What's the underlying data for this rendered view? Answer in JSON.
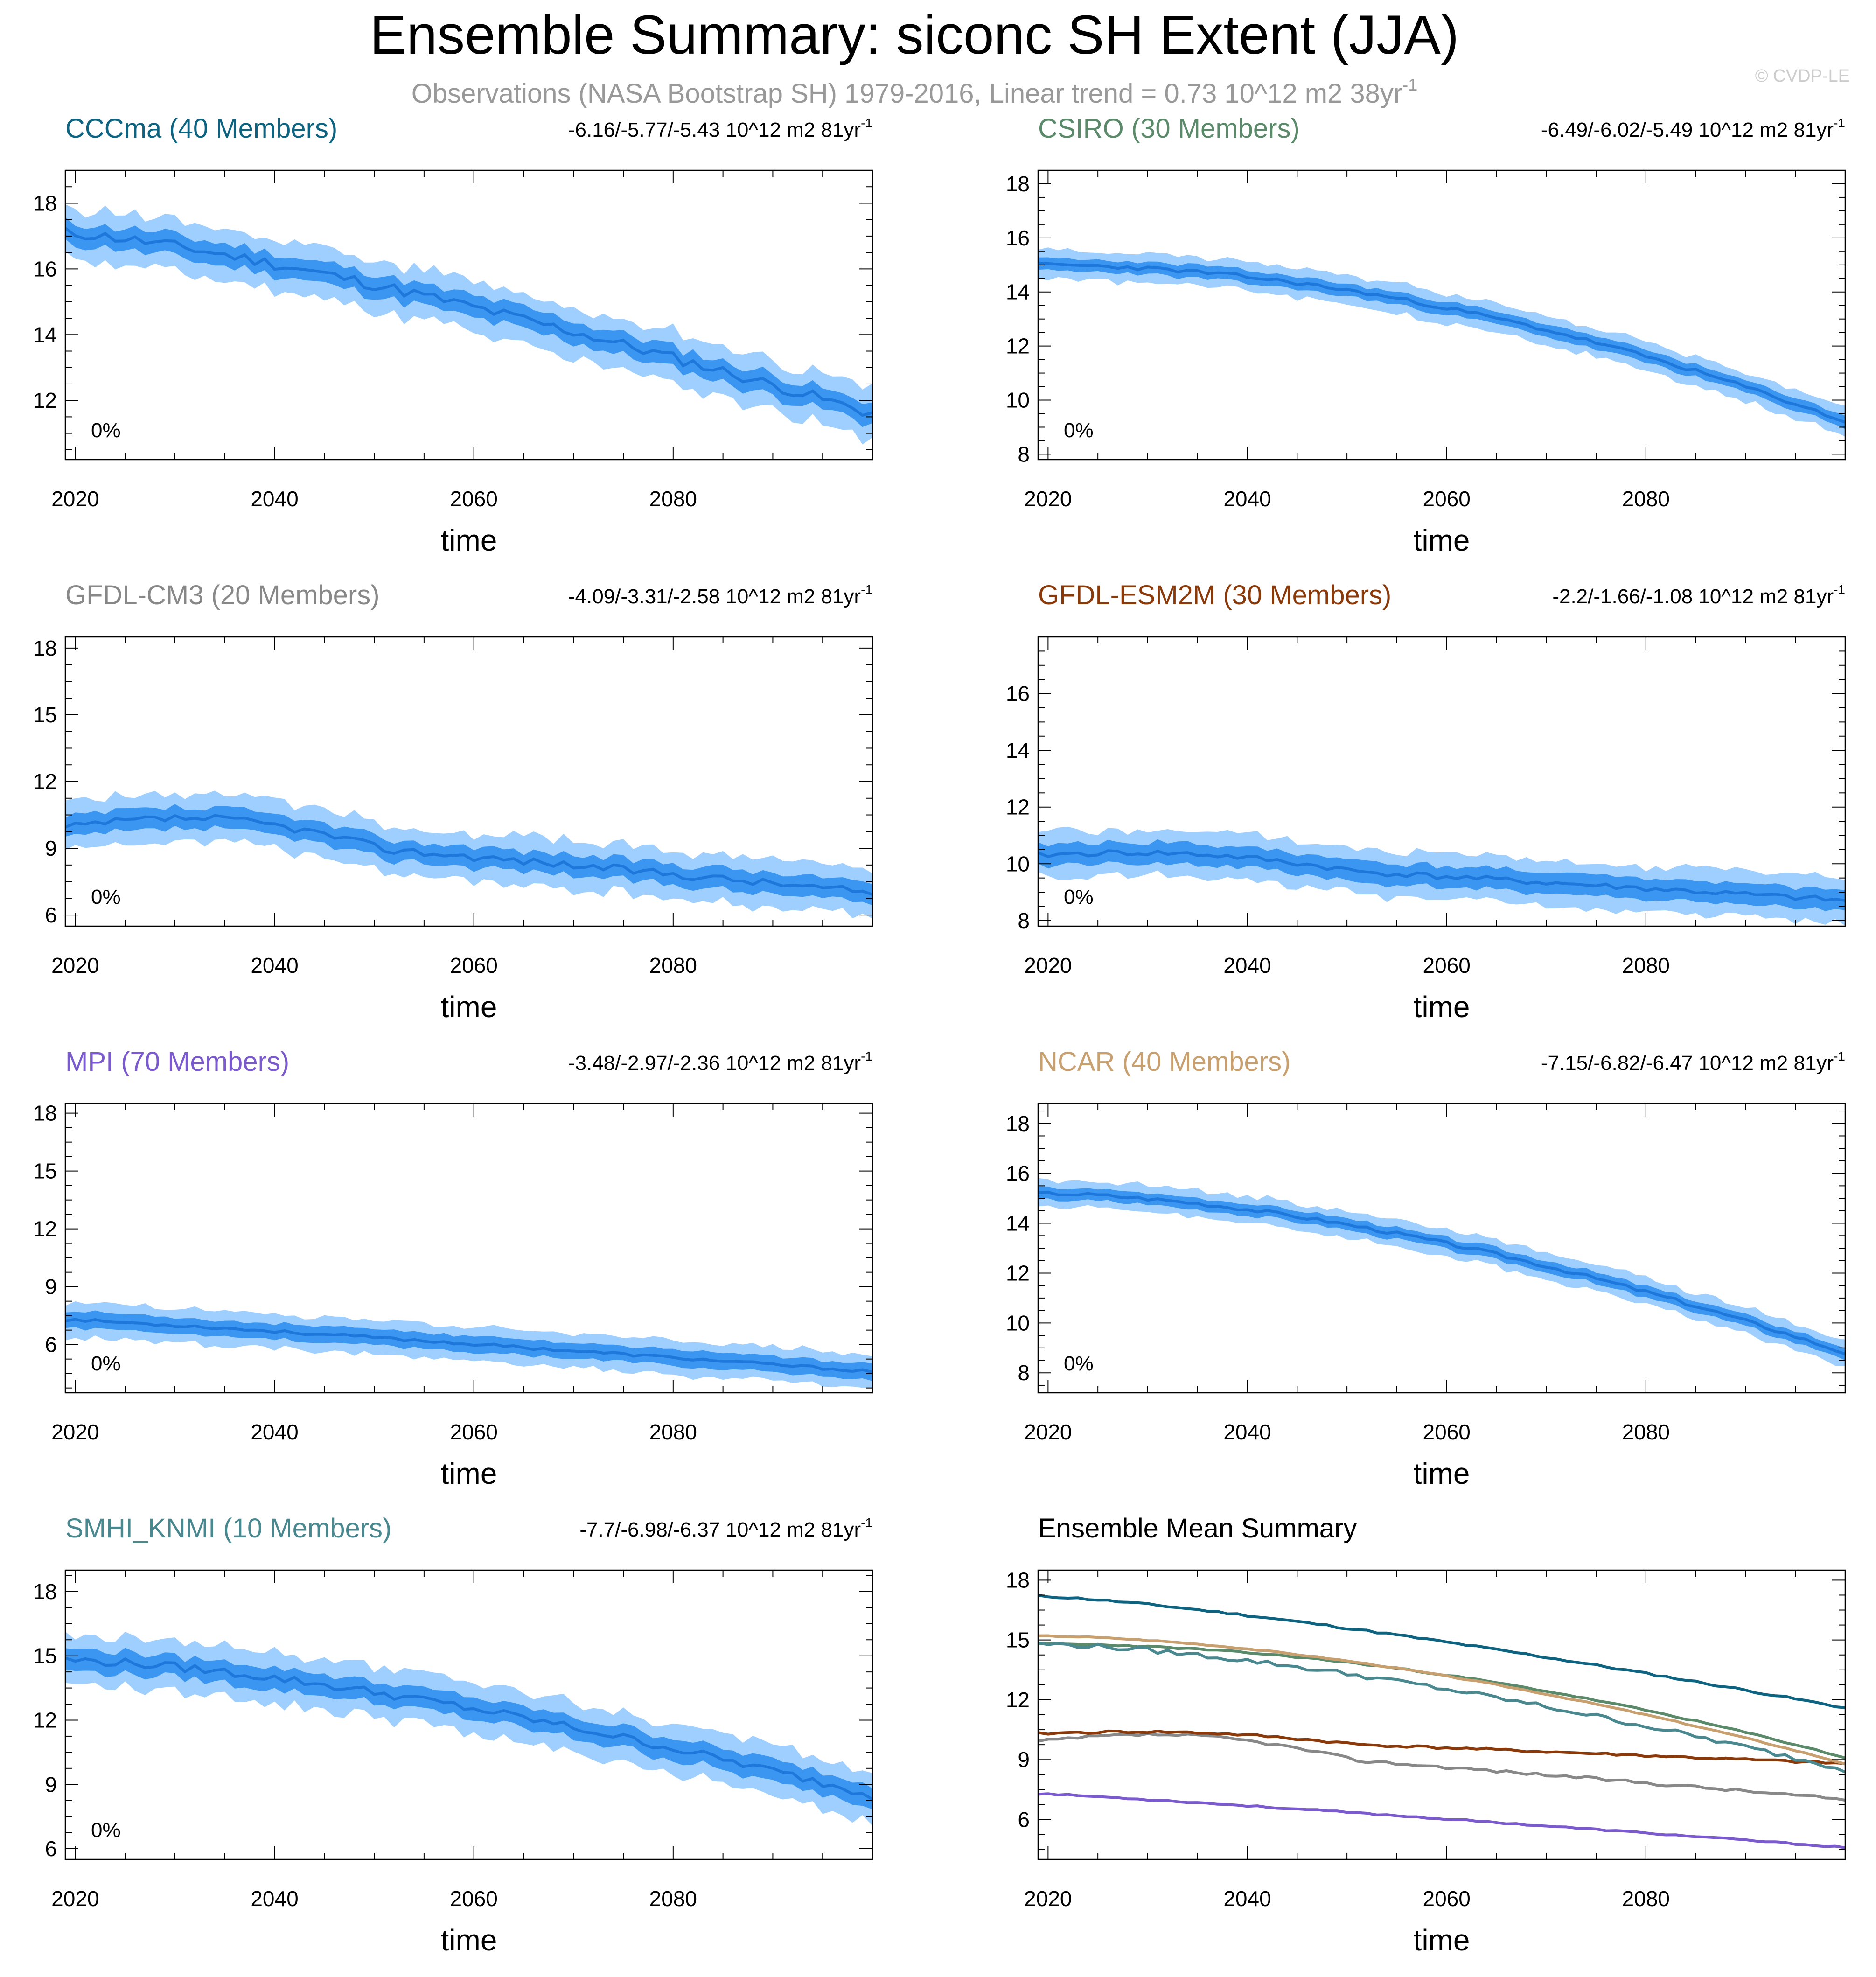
{
  "figure": {
    "title": "Ensemble Summary: siconc SH Extent (JJA)",
    "subtitle": "Observations (NASA Bootstrap SH) 1979-2016, Linear trend = 0.73 10^12 m2 38yr",
    "subtitle_sup": "-1",
    "watermark": "© CVDP-LE"
  },
  "chart_data": [
    {
      "type": "area",
      "title": "CCCma (40 Members)",
      "title_color": "#0e6480",
      "trend_label": "-6.16/-5.77/-5.43 10^12 m2 81yr",
      "trend_sup": "-1",
      "annotation": "0%",
      "xlabel": "time",
      "xlim": [
        2019,
        2100
      ],
      "ylim": [
        10.2,
        19
      ],
      "yticks": [
        12,
        14,
        16,
        18
      ],
      "xticks": [
        2020,
        2040,
        2060,
        2080
      ],
      "start": 17.1,
      "end": 11.6,
      "curve": 1.3,
      "spread_inner": 0.35,
      "spread_outer": 0.85,
      "noise": 0.35,
      "seed": 11
    },
    {
      "type": "area",
      "title": "CSIRO (30 Members)",
      "title_color": "#5a8a6a",
      "trend_label": "-6.49/-6.02/-5.49 10^12 m2 81yr",
      "trend_sup": "-1",
      "annotation": "0%",
      "xlabel": "time",
      "xlim": [
        2019,
        2100
      ],
      "ylim": [
        7.8,
        18.5
      ],
      "yticks": [
        8,
        10,
        12,
        14,
        16,
        18
      ],
      "xticks": [
        2020,
        2040,
        2060,
        2080
      ],
      "start": 15.0,
      "end": 9.2,
      "curve": 1.9,
      "spread_inner": 0.25,
      "spread_outer": 0.6,
      "noise": 0.15,
      "seed": 23
    },
    {
      "type": "area",
      "title": "GFDL-CM3 (20 Members)",
      "title_color": "#888888",
      "trend_label": "-4.09/-3.31/-2.58 10^12 m2 81yr",
      "trend_sup": "-1",
      "annotation": "0%",
      "xlabel": "time",
      "xlim": [
        2019,
        2100
      ],
      "ylim": [
        5.5,
        18.5
      ],
      "yticks": [
        6,
        9,
        12,
        15,
        18
      ],
      "xticks": [
        2020,
        2040,
        2060,
        2080
      ],
      "start": 9.9,
      "end": 7.0,
      "curve": 1.2,
      "bump": 0.8,
      "spread_inner": 0.5,
      "spread_outer": 1.2,
      "noise": 0.35,
      "seed": 37
    },
    {
      "type": "area",
      "title": "GFDL-ESM2M (30 Members)",
      "title_color": "#8a3a0a",
      "trend_label": "-2.2/-1.66/-1.08 10^12 m2 81yr",
      "trend_sup": "-1",
      "annotation": "0%",
      "xlabel": "time",
      "xlim": [
        2019,
        2100
      ],
      "ylim": [
        7.8,
        18
      ],
      "yticks": [
        8,
        10,
        12,
        14,
        16
      ],
      "xticks": [
        2020,
        2040,
        2060,
        2080
      ],
      "start": 10.3,
      "end": 8.7,
      "curve": 1.1,
      "bump": 0.3,
      "spread_inner": 0.4,
      "spread_outer": 0.9,
      "noise": 0.2,
      "seed": 41
    },
    {
      "type": "area",
      "title": "MPI (70 Members)",
      "title_color": "#7a5acc",
      "trend_label": "-3.48/-2.97/-2.36 10^12 m2 81yr",
      "trend_sup": "-1",
      "annotation": "0%",
      "xlabel": "time",
      "xlim": [
        2019,
        2100
      ],
      "ylim": [
        3.5,
        18.5
      ],
      "yticks": [
        6,
        9,
        12,
        15,
        18
      ],
      "xticks": [
        2020,
        2040,
        2060,
        2080
      ],
      "start": 7.3,
      "end": 4.6,
      "curve": 1.1,
      "spread_inner": 0.45,
      "spread_outer": 1.0,
      "noise": 0.15,
      "seed": 53
    },
    {
      "type": "area",
      "title": "NCAR (40 Members)",
      "title_color": "#c8a070",
      "trend_label": "-7.15/-6.82/-6.47 10^12 m2 81yr",
      "trend_sup": "-1",
      "annotation": "0%",
      "xlabel": "time",
      "xlim": [
        2019,
        2100
      ],
      "ylim": [
        7.2,
        18.8
      ],
      "yticks": [
        8,
        10,
        12,
        14,
        16,
        18
      ],
      "xticks": [
        2020,
        2040,
        2060,
        2080
      ],
      "start": 15.2,
      "end": 8.8,
      "curve": 1.7,
      "spread_inner": 0.25,
      "spread_outer": 0.6,
      "noise": 0.15,
      "seed": 67
    },
    {
      "type": "area",
      "title": "SMHI_KNMI (10 Members)",
      "title_color": "#4a8890",
      "trend_label": "-7.7/-6.98/-6.37 10^12 m2 81yr",
      "trend_sup": "-1",
      "annotation": "0%",
      "xlabel": "time",
      "xlim": [
        2019,
        2100
      ],
      "ylim": [
        5.5,
        19
      ],
      "yticks": [
        6,
        9,
        12,
        15,
        18
      ],
      "xticks": [
        2020,
        2040,
        2060,
        2080
      ],
      "start": 14.8,
      "end": 8.5,
      "curve": 1.5,
      "spread_inner": 0.55,
      "spread_outer": 1.3,
      "noise": 0.4,
      "seed": 79
    },
    {
      "type": "line",
      "title": "Ensemble Mean Summary",
      "title_color": "#000000",
      "xlabel": "time",
      "xlim": [
        2019,
        2100
      ],
      "ylim": [
        4,
        18.5
      ],
      "yticks": [
        6,
        9,
        12,
        15,
        18
      ],
      "xticks": [
        2020,
        2040,
        2060,
        2080
      ],
      "series": [
        {
          "ref": "CCCma",
          "color": "#0e6480",
          "start": 17.2,
          "end": 11.6,
          "curve": 1.3,
          "noise": 0.1,
          "seed": 11
        },
        {
          "ref": "CSIRO",
          "color": "#5a8a6a",
          "start": 14.8,
          "end": 9.1,
          "curve": 1.9,
          "noise": 0.07,
          "seed": 23
        },
        {
          "ref": "GFDL-CM3",
          "color": "#888888",
          "start": 9.9,
          "end": 7.0,
          "curve": 1.2,
          "bump": 0.7,
          "noise": 0.15,
          "seed": 37
        },
        {
          "ref": "GFDL-ESM2M",
          "color": "#8a3a0a",
          "start": 10.3,
          "end": 8.8,
          "curve": 1.1,
          "bump": 0.3,
          "noise": 0.12,
          "seed": 41
        },
        {
          "ref": "MPI",
          "color": "#7a5acc",
          "start": 7.3,
          "end": 4.6,
          "curve": 1.1,
          "noise": 0.07,
          "seed": 53
        },
        {
          "ref": "NCAR",
          "color": "#c8a070",
          "start": 15.2,
          "end": 8.8,
          "curve": 1.7,
          "noise": 0.05,
          "seed": 67
        },
        {
          "ref": "SMHI_KNMI",
          "color": "#4a8890",
          "start": 14.8,
          "end": 8.5,
          "curve": 1.5,
          "noise": 0.25,
          "seed": 79
        }
      ]
    }
  ]
}
